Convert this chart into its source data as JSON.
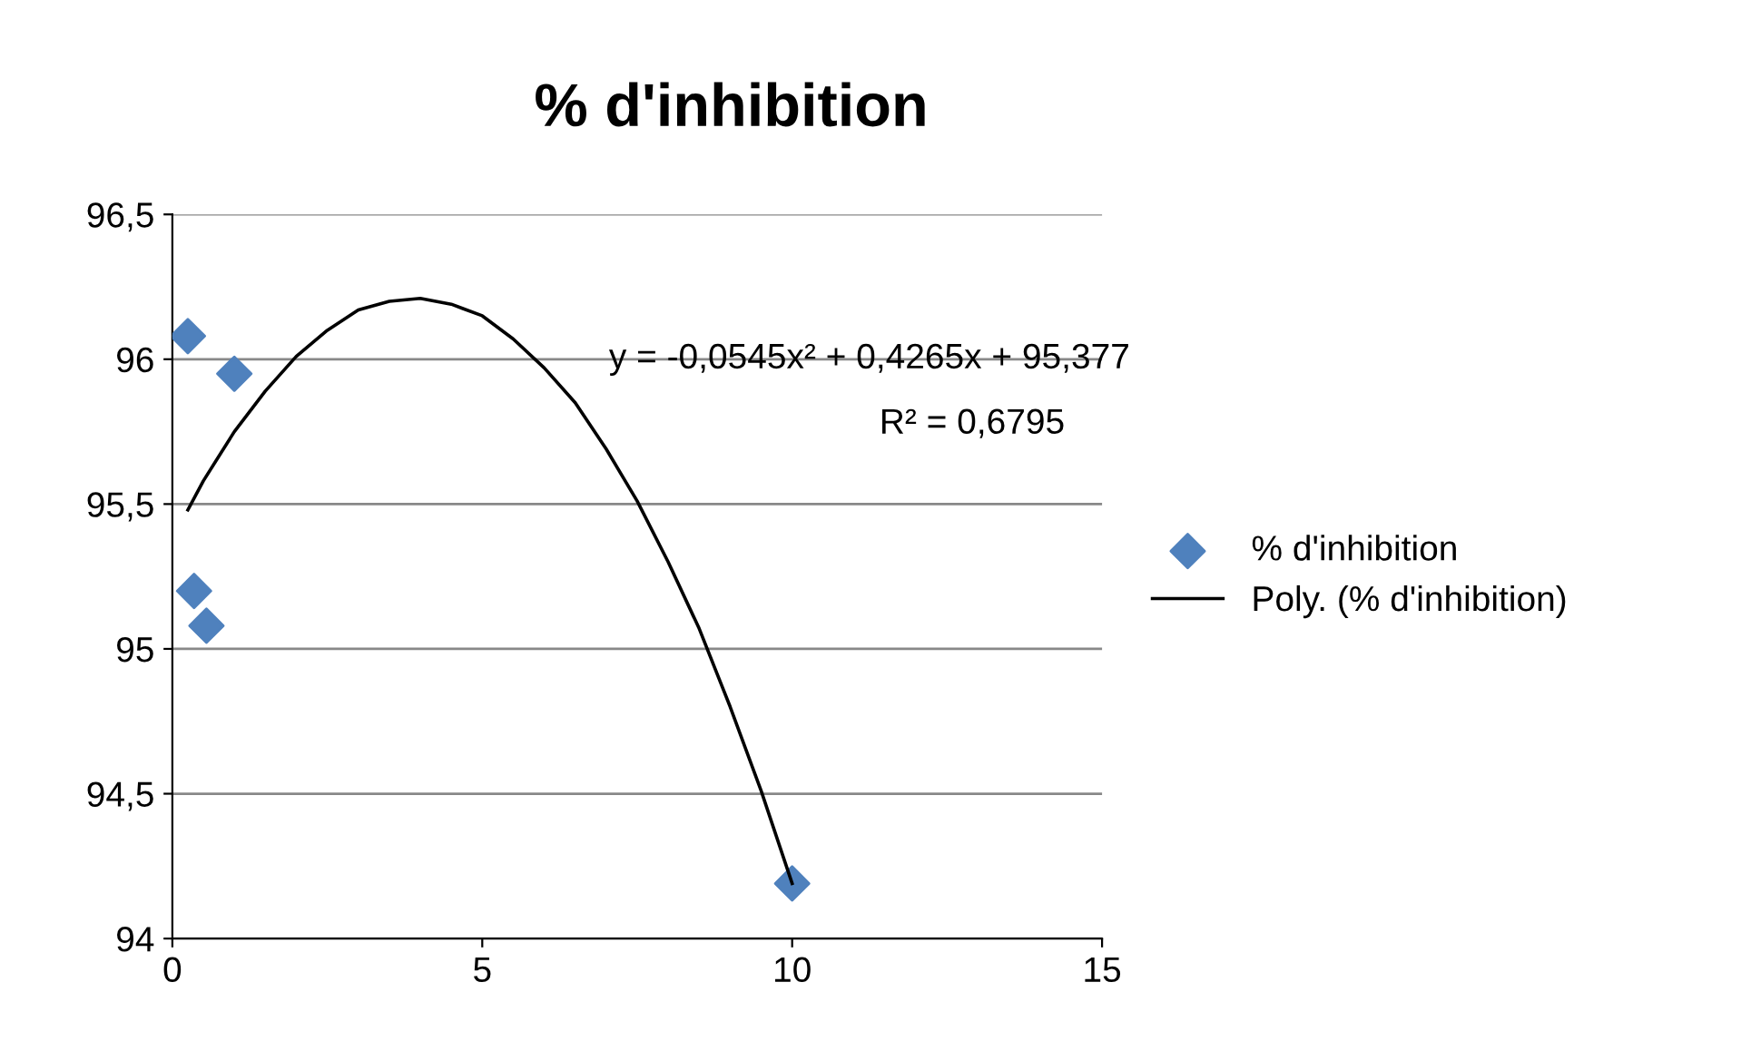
{
  "chart_data": {
    "type": "scatter",
    "title": "% d'inhibition",
    "series": [
      {
        "name": "% d'inhibition",
        "color": "#4f81bd",
        "marker": "diamond",
        "x": [
          0.25,
          1,
          0.35,
          0.55,
          10
        ],
        "values": [
          96.08,
          95.95,
          95.2,
          95.08,
          94.19
        ]
      },
      {
        "name": "Poly. (% d'inhibition)",
        "type": "line",
        "color": "#000000",
        "marker": "none",
        "line_style": "solid",
        "x": [
          0.25,
          0.5,
          1,
          1.5,
          2,
          2.5,
          3,
          3.5,
          4,
          4.5,
          5,
          5.5,
          6,
          6.5,
          7,
          7.5,
          8,
          8.5,
          9,
          9.5,
          10
        ],
        "values": [
          95.48,
          95.58,
          95.75,
          95.89,
          96.01,
          96.1,
          96.17,
          96.2,
          96.21,
          96.19,
          96.15,
          96.07,
          95.97,
          95.85,
          95.69,
          95.51,
          95.3,
          95.07,
          94.8,
          94.51,
          94.19
        ]
      }
    ],
    "annotations": [
      "y = -0,0545x² + 0,4265x + 95,377",
      "R² = 0,6795"
    ],
    "xlim": [
      0,
      15
    ],
    "xticks": [
      0,
      5,
      10,
      15
    ],
    "ylim": [
      94,
      96.5
    ],
    "yticks": [
      94,
      {
        "value": 94.5,
        "label": "94,5"
      },
      95,
      {
        "value": 95.5,
        "label": "95,5"
      },
      96,
      {
        "value": 96.5,
        "label": "96,5"
      }
    ],
    "grid": "y",
    "legend": "right"
  }
}
